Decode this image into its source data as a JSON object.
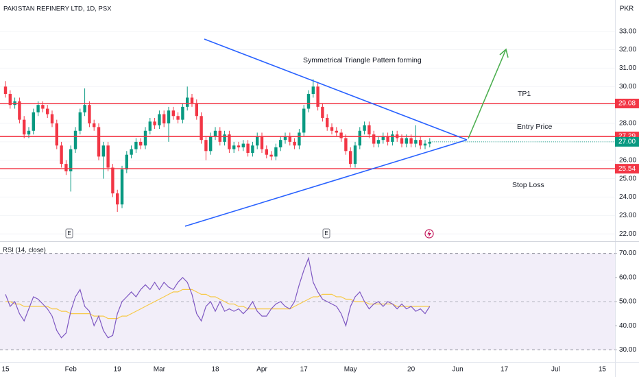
{
  "chart_data": [
    {
      "type": "candlestick",
      "title": "PAKISTAN REFINERY LTD, 1D, PSX",
      "currency": "PKR",
      "annotation": "Symmetrical Triangle Pattern forming",
      "earnings_markers": [
        "E",
        "E"
      ],
      "up_color": "#089981",
      "down_color": "#f23645",
      "categories": [
        "15",
        null,
        null,
        null,
        null,
        null,
        null,
        null,
        null,
        null,
        null,
        null,
        null,
        null,
        "Feb",
        null,
        null,
        null,
        null,
        null,
        null,
        null,
        null,
        null,
        "19",
        null,
        null,
        null,
        null,
        null,
        null,
        null,
        null,
        "Mar",
        null,
        null,
        null,
        null,
        null,
        null,
        null,
        null,
        null,
        null,
        null,
        "18",
        null,
        null,
        null,
        null,
        null,
        null,
        null,
        null,
        null,
        "Apr",
        null,
        null,
        null,
        null,
        null,
        null,
        null,
        null,
        "17",
        null,
        null,
        null,
        null,
        null,
        null,
        null,
        null,
        null,
        "May",
        null,
        null,
        null,
        null,
        null,
        null,
        null,
        null,
        null,
        null,
        null,
        null,
        "20",
        null,
        null,
        null,
        null,
        null,
        null,
        null,
        null,
        null,
        "Jun",
        null,
        null,
        null,
        null,
        null,
        null,
        null,
        null,
        null,
        "17",
        null,
        null,
        null,
        null,
        null,
        null,
        null,
        null,
        null,
        null,
        "Jul",
        null,
        null,
        null,
        null,
        null,
        null,
        null,
        null,
        null,
        "15"
      ],
      "open": [
        30,
        29.6,
        29.0,
        29.2,
        28.2,
        27.4,
        27.6,
        28.6,
        29.0,
        28.8,
        28.5,
        28.0,
        26.8,
        25.8,
        25.4,
        26.6,
        27.6,
        28.6,
        29.0,
        28.0,
        27.8,
        26.2,
        26.8,
        25.6,
        24.2,
        23.6,
        25.5,
        26.3,
        26.6,
        27.0,
        26.8,
        27.6,
        28.1,
        27.9,
        28.5,
        28.0,
        28.7,
        28.4,
        28.2,
        28.9,
        29.4,
        29.1,
        28.4,
        27.1,
        26.5,
        27.3,
        27.6,
        27.0,
        27.4,
        26.6,
        26.8,
        26.7,
        26.9,
        26.4,
        26.8,
        27.3,
        26.6,
        26.3,
        26.2,
        26.7,
        27.1,
        27.3,
        27.0,
        26.8,
        27.5,
        28.8,
        29.6,
        30.0,
        28.9,
        28.3,
        27.8,
        27.6,
        27.5,
        27.2,
        26.5,
        25.8,
        26.8,
        27.6,
        27.9,
        27.4,
        26.9,
        27.1,
        27.3,
        27.0,
        27.4,
        27.2,
        26.9,
        27.2,
        26.9,
        27.1,
        26.8,
        26.9,
        null,
        null,
        null,
        null,
        null,
        null,
        null,
        null,
        null,
        null,
        null,
        null,
        null,
        null,
        null,
        null,
        null,
        null,
        null,
        null,
        null,
        null,
        null,
        null,
        null,
        null,
        null,
        null,
        null,
        null,
        null,
        null,
        null,
        null,
        null,
        null,
        null
      ],
      "high": [
        30.3,
        29.8,
        29.4,
        29.4,
        28.4,
        27.8,
        28.8,
        29.2,
        29.2,
        29.0,
        28.7,
        28.2,
        27.0,
        26.0,
        26.8,
        27.8,
        28.8,
        29.9,
        29.2,
        28.2,
        28.0,
        27.0,
        27.0,
        25.8,
        24.4,
        25.7,
        26.5,
        26.8,
        27.2,
        27.2,
        27.8,
        28.3,
        28.3,
        28.7,
        28.7,
        28.9,
        28.9,
        28.6,
        29.1,
        30.0,
        29.6,
        29.3,
        28.6,
        27.3,
        27.5,
        27.8,
        27.8,
        27.6,
        27.6,
        27.0,
        27.0,
        27.1,
        27.1,
        27.0,
        27.5,
        27.5,
        26.8,
        26.5,
        26.9,
        27.3,
        27.5,
        27.5,
        27.2,
        27.7,
        29.0,
        29.8,
        30.4,
        30.2,
        29.1,
        28.5,
        28.0,
        27.8,
        27.7,
        27.4,
        26.7,
        27.0,
        27.8,
        28.1,
        28.1,
        27.6,
        27.3,
        27.5,
        27.5,
        27.6,
        27.6,
        27.4,
        27.4,
        27.4,
        27.9,
        27.3,
        27.1,
        27.2,
        null,
        null,
        null,
        null,
        null,
        null,
        null,
        null,
        null,
        null,
        null,
        null,
        null,
        null,
        null,
        null,
        null,
        null,
        null,
        null,
        null,
        null,
        null,
        null,
        null,
        null,
        null,
        null,
        null,
        null,
        null,
        null,
        null,
        null,
        null,
        null,
        null
      ],
      "low": [
        29.4,
        28.8,
        28.8,
        28.0,
        27.2,
        27.2,
        27.4,
        28.4,
        28.6,
        28.3,
        27.8,
        26.6,
        25.6,
        25.2,
        24.3,
        26.4,
        27.4,
        28.4,
        27.8,
        27.6,
        26.0,
        25.0,
        25.4,
        24.0,
        23.2,
        23.4,
        25.3,
        26.1,
        26.4,
        26.6,
        26.6,
        27.4,
        27.7,
        27.7,
        27.8,
        27.0,
        28.2,
        28.0,
        28.0,
        28.7,
        28.9,
        28.2,
        26.9,
        26.0,
        26.3,
        27.1,
        26.8,
        26.8,
        26.4,
        26.4,
        26.5,
        26.5,
        26.2,
        26.2,
        26.6,
        26.4,
        26.1,
        26.0,
        26.0,
        26.5,
        26.9,
        26.8,
        26.6,
        26.6,
        27.3,
        28.6,
        29.4,
        28.7,
        28.1,
        27.6,
        27.4,
        27.3,
        27.0,
        26.3,
        25.6,
        25.6,
        26.6,
        27.4,
        27.2,
        26.7,
        26.7,
        26.9,
        26.8,
        26.8,
        27.0,
        26.7,
        26.7,
        26.7,
        26.7,
        26.6,
        26.6,
        26.7,
        null,
        null,
        null,
        null,
        null,
        null,
        null,
        null,
        null,
        null,
        null,
        null,
        null,
        null,
        null,
        null,
        null,
        null,
        null,
        null,
        null,
        null,
        null,
        null,
        null,
        null,
        null,
        null,
        null,
        null,
        null,
        null,
        null,
        null,
        null,
        null,
        null
      ],
      "close": [
        29.6,
        29.0,
        29.2,
        28.2,
        27.4,
        27.6,
        28.6,
        29.0,
        28.8,
        28.5,
        28.0,
        26.8,
        25.8,
        25.4,
        26.6,
        27.6,
        28.6,
        29.0,
        28.0,
        27.8,
        26.2,
        26.8,
        25.6,
        24.2,
        23.6,
        25.5,
        26.3,
        26.6,
        27.0,
        26.8,
        27.6,
        28.1,
        27.9,
        28.5,
        28.0,
        28.7,
        28.4,
        28.2,
        28.9,
        29.4,
        29.1,
        28.4,
        27.1,
        26.5,
        27.3,
        27.6,
        27.0,
        27.4,
        26.6,
        26.8,
        26.7,
        26.9,
        26.4,
        26.8,
        27.3,
        26.6,
        26.3,
        26.2,
        26.7,
        27.1,
        27.3,
        27.0,
        26.8,
        27.5,
        28.8,
        29.6,
        30.0,
        28.9,
        28.3,
        27.8,
        27.6,
        27.5,
        27.2,
        26.5,
        25.8,
        26.8,
        27.6,
        27.9,
        27.4,
        26.9,
        27.1,
        27.3,
        27.0,
        27.4,
        27.2,
        26.9,
        27.2,
        26.9,
        27.1,
        26.8,
        26.9,
        27.0,
        null,
        null,
        null,
        null,
        null,
        null,
        null,
        null,
        null,
        null,
        null,
        null,
        null,
        null,
        null,
        null,
        null,
        null,
        null,
        null,
        null,
        null,
        null,
        null,
        null,
        null,
        null,
        null,
        null,
        null,
        null,
        null,
        null,
        null,
        null,
        null,
        null
      ],
      "levels": [
        {
          "name": "TP1",
          "color": "#f23645",
          "price": {
            "value": 29.08,
            "label": "29.08"
          }
        },
        {
          "name": "Entry Price",
          "color": "#f23645",
          "price": {
            "value": 27.29,
            "label": "27.29"
          }
        },
        {
          "name": "Stop Loss",
          "color": "#f23645",
          "price": {
            "value": 25.54,
            "label": "25.54"
          }
        }
      ],
      "last_price": {
        "value": 27,
        "label": "27.00",
        "color": "#089981"
      },
      "ylim": [
        21.6,
        34.7
      ],
      "yticks": [
        {
          "value": 22,
          "label": "22.00"
        },
        {
          "value": 23,
          "label": "23.00"
        },
        {
          "value": 24,
          "label": "24.00"
        },
        {
          "value": 25,
          "label": "25.00"
        },
        {
          "value": 26,
          "label": "26.00"
        },
        {
          "value": 27,
          "label": "27.00"
        },
        {
          "value": 28,
          "label": "28.00"
        },
        {
          "value": 29,
          "label": "29.00"
        },
        {
          "value": 30,
          "label": "30.00"
        },
        {
          "value": 31,
          "label": "31.00"
        },
        {
          "value": 32,
          "label": "32.00"
        },
        {
          "value": 33,
          "label": "33.00"
        }
      ]
    },
    {
      "type": "line",
      "title": "RSI (14, close)",
      "series": [
        {
          "color": "#7e57c2",
          "values": [
            53,
            48,
            50,
            45,
            42,
            47,
            52,
            51,
            49,
            47,
            44,
            38,
            35,
            37,
            46,
            52,
            55,
            48,
            46,
            40,
            44,
            38,
            35,
            36,
            45,
            50,
            52,
            54,
            52,
            55,
            57,
            55,
            58,
            55,
            58,
            56,
            55,
            58,
            60,
            58,
            53,
            45,
            42,
            48,
            50,
            46,
            50,
            46,
            47,
            46,
            47,
            45,
            47,
            50,
            46,
            44,
            44,
            47,
            49,
            50,
            48,
            47,
            50,
            57,
            63,
            68,
            58,
            54,
            51,
            50,
            49,
            48,
            45,
            40,
            48,
            52,
            54,
            50,
            47,
            49,
            50,
            48,
            50,
            49,
            47,
            49,
            47,
            48,
            46,
            47,
            45,
            48,
            null,
            null,
            null,
            null,
            null,
            null,
            null,
            null,
            null,
            null,
            null,
            null,
            null,
            null,
            null,
            null,
            null,
            null,
            null,
            null,
            null,
            null,
            null,
            null,
            null,
            null,
            null,
            null,
            null,
            null,
            null,
            null,
            null,
            null,
            null,
            null,
            null
          ]
        },
        {
          "color": "#f7c948",
          "values": [
            50,
            50,
            49,
            49,
            48,
            48,
            48,
            48,
            48,
            48,
            47,
            47,
            46,
            46,
            45,
            45,
            45,
            45,
            45,
            44,
            44,
            44,
            43,
            43,
            43,
            44,
            44,
            45,
            46,
            47,
            48,
            49,
            50,
            51,
            52,
            53,
            54,
            54,
            55,
            55,
            55,
            54,
            53,
            53,
            52,
            52,
            51,
            50,
            49,
            49,
            48,
            48,
            47,
            47,
            47,
            47,
            47,
            47,
            47,
            47,
            47,
            47,
            48,
            49,
            50,
            51,
            52,
            52,
            53,
            53,
            53,
            52,
            52,
            51,
            51,
            50,
            50,
            50,
            49,
            49,
            49,
            49,
            49,
            49,
            48,
            48,
            48,
            48,
            48,
            48,
            48,
            48,
            null,
            null,
            null,
            null,
            null,
            null,
            null,
            null,
            null,
            null,
            null,
            null,
            null,
            null,
            null,
            null,
            null,
            null,
            null,
            null,
            null,
            null,
            null,
            null,
            null,
            null,
            null,
            null,
            null,
            null,
            null,
            null,
            null,
            null,
            null,
            null,
            null
          ]
        }
      ],
      "bands": [
        70,
        50,
        30
      ],
      "band_fill": "#ede7f6",
      "ylim": [
        25,
        75
      ],
      "yticks": [
        {
          "value": 30,
          "label": "30.00"
        },
        {
          "value": 40,
          "label": "40.00"
        },
        {
          "value": 50,
          "label": "50.00"
        },
        {
          "value": 60,
          "label": "60.00"
        },
        {
          "value": 70,
          "label": "70.00"
        }
      ]
    }
  ]
}
